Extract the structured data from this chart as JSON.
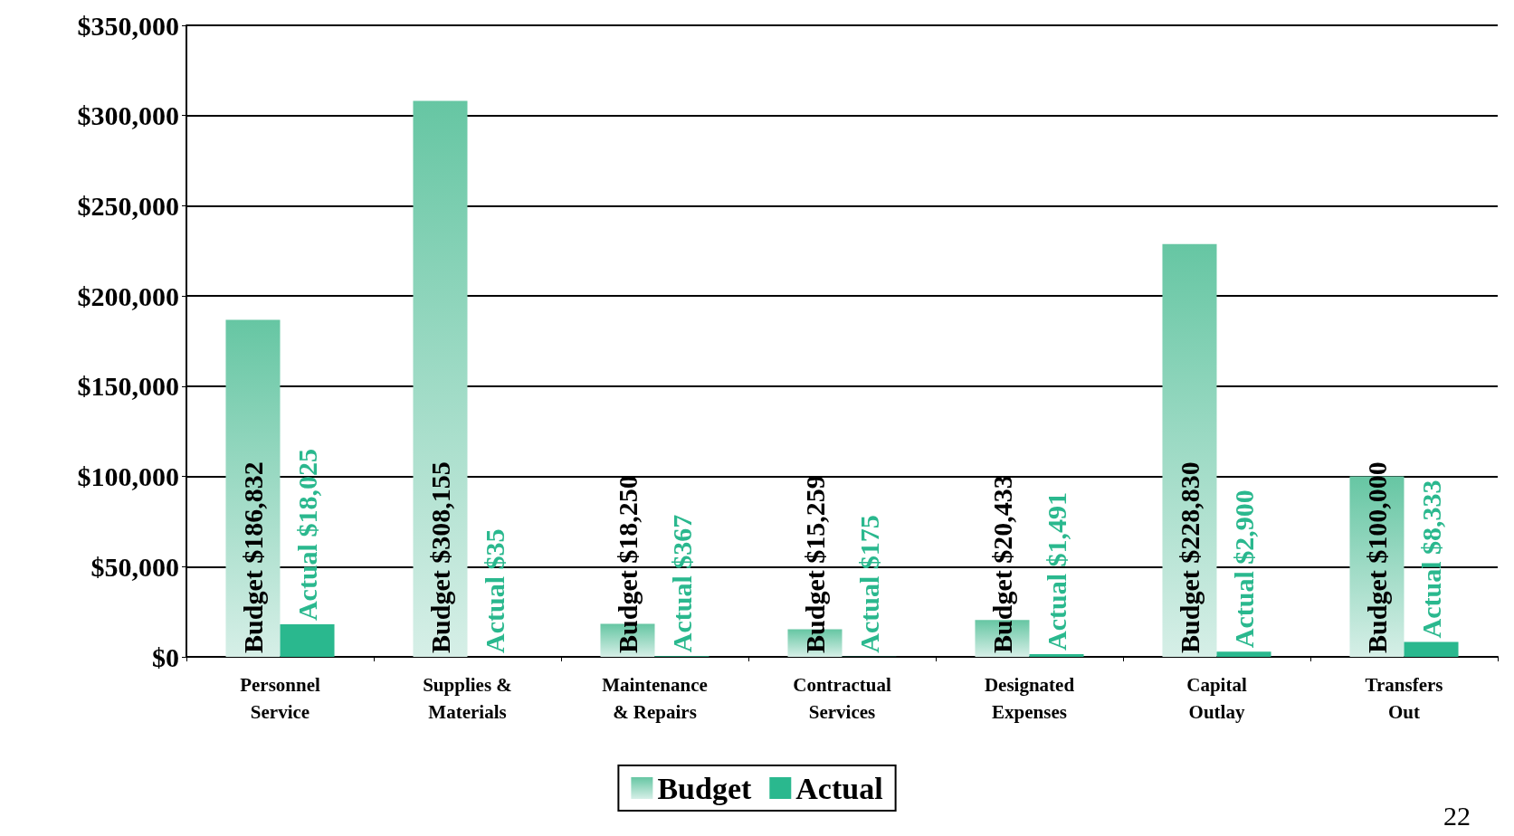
{
  "chart_data": {
    "type": "bar",
    "categories": [
      "Personnel\nService",
      "Supplies &\nMaterials",
      "Maintenance\n& Repairs",
      "Contractual\nServices",
      "Designated\nExpenses",
      "Capital\nOutlay",
      "Transfers\nOut"
    ],
    "series": [
      {
        "name": "Budget",
        "color": "#66c6a3",
        "values": [
          186832,
          308155,
          18250,
          15259,
          20433,
          228830,
          100000
        ],
        "value_labels": [
          "Budget $186,832",
          "Budget $308,155",
          "Budget $18,250",
          "Budget $15,259",
          "Budget $20,433",
          "Budget $228,830",
          "Budget $100,000"
        ]
      },
      {
        "name": "Actual",
        "color": "#2ab88e",
        "values": [
          18025,
          35,
          367,
          175,
          1491,
          2900,
          8333
        ],
        "value_labels": [
          "Actual $18,025",
          "Actual $35",
          "Actual $367",
          "Actual $175",
          "Actual $1,491",
          "Actual $2,900",
          "Actual $8,333"
        ]
      }
    ],
    "ylim": [
      0,
      350000
    ],
    "yticks": [
      {
        "value": 0,
        "label": "$0"
      },
      {
        "value": 50000,
        "label": "$50,000"
      },
      {
        "value": 100000,
        "label": "$100,000"
      },
      {
        "value": 150000,
        "label": "$150,000"
      },
      {
        "value": 200000,
        "label": "$200,000"
      },
      {
        "value": 250000,
        "label": "$250,000"
      },
      {
        "value": 300000,
        "label": "$300,000"
      },
      {
        "value": 350000,
        "label": "$350,000"
      }
    ],
    "grid": "y",
    "legend": "bottom",
    "annotations": [
      "22"
    ]
  }
}
